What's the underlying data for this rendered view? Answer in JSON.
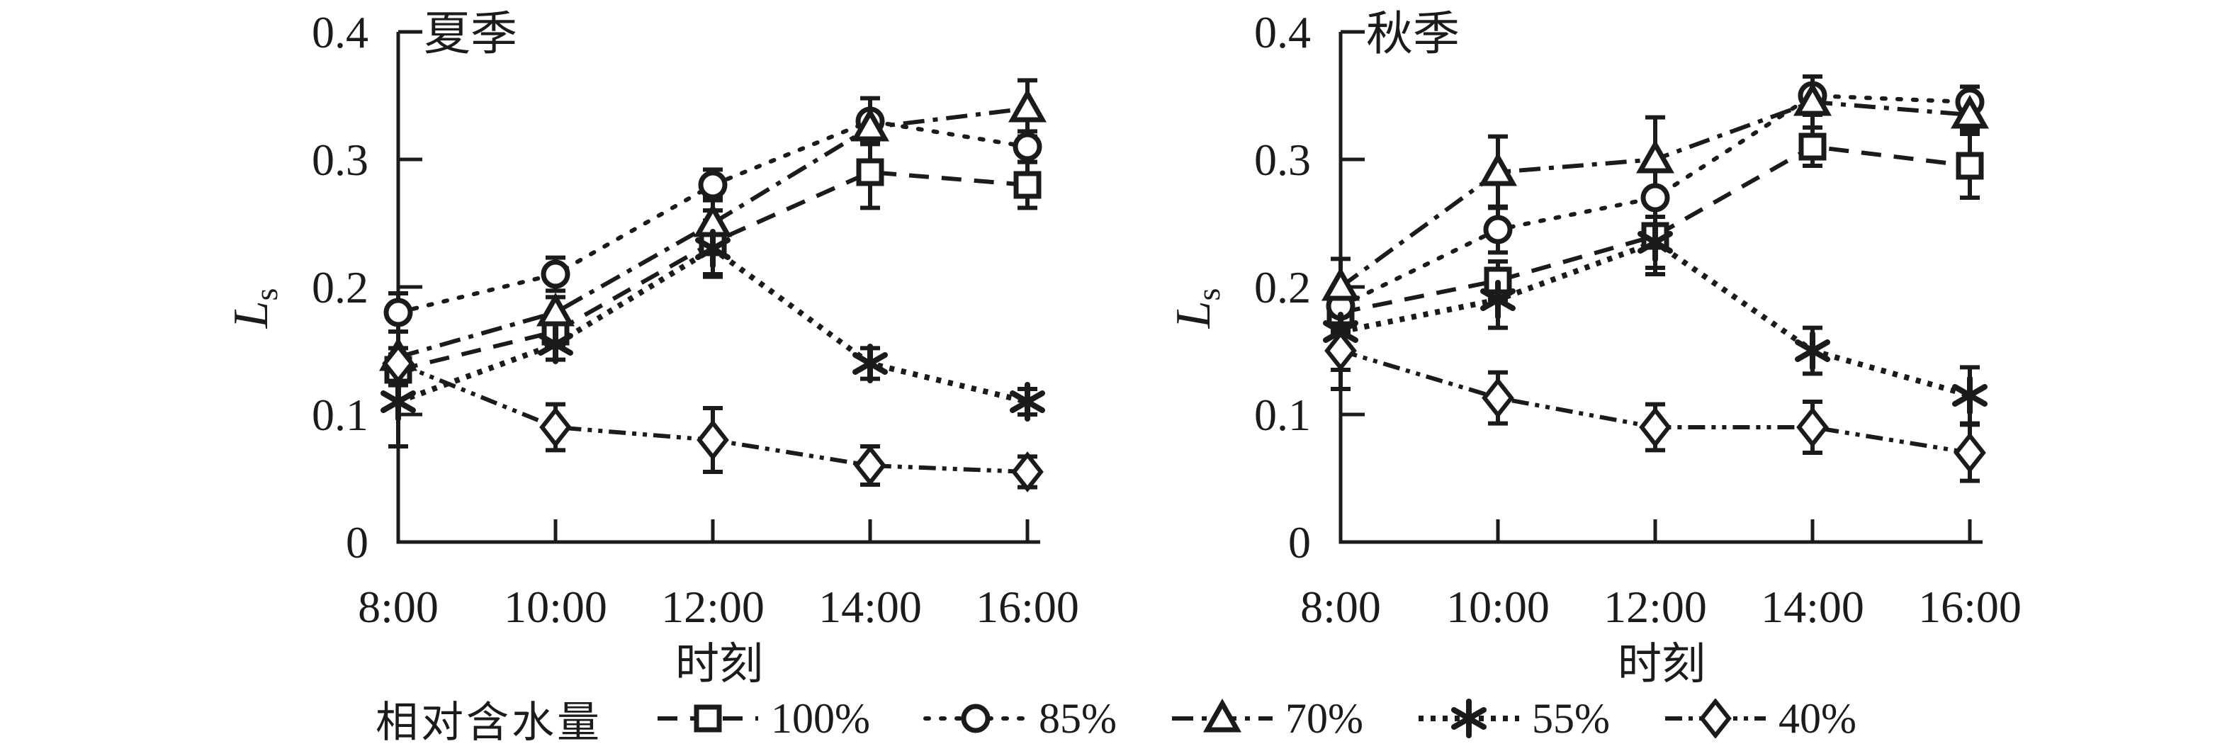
{
  "figure": {
    "ylabel_main": "L",
    "ylabel_sub": "s",
    "xlabel": "时刻",
    "x_tick_labels": [
      "8:00",
      "10:00",
      "12:00",
      "14:00",
      "16:00"
    ],
    "y_tick_labels": [
      "0",
      "0.1",
      "0.2",
      "0.3",
      "0.4"
    ]
  },
  "legend": {
    "title": "相对含水量",
    "items": [
      "100%",
      "85%",
      "70%",
      "55%",
      "40%"
    ]
  },
  "colors": {
    "ink": "#1b1b1b",
    "background": "#ffffff"
  },
  "chart_data": [
    {
      "type": "line",
      "title": "夏季",
      "categories": [
        "8:00",
        "10:00",
        "12:00",
        "14:00",
        "16:00"
      ],
      "xlabel": "时刻",
      "ylabel": "Ls",
      "ylim": [
        0,
        0.4
      ],
      "yticks": [
        0,
        0.1,
        0.2,
        0.3,
        0.4
      ],
      "grid": false,
      "series": [
        {
          "name": "100%",
          "marker": "square",
          "linestyle": "dashed",
          "values": [
            0.135,
            0.165,
            0.235,
            0.29,
            0.28
          ],
          "errors": [
            0.012,
            0.01,
            0.025,
            0.028,
            0.018
          ]
        },
        {
          "name": "85%",
          "marker": "circle",
          "linestyle": "dotted",
          "values": [
            0.18,
            0.21,
            0.28,
            0.33,
            0.31
          ],
          "errors": [
            0.015,
            0.013,
            0.012,
            0.018,
            0.012
          ]
        },
        {
          "name": "70%",
          "marker": "triangle",
          "linestyle": "dashdot",
          "values": [
            0.145,
            0.18,
            0.25,
            0.325,
            0.34
          ],
          "errors": [
            0.02,
            0.012,
            0.02,
            0.01,
            0.022
          ]
        },
        {
          "name": "55%",
          "marker": "asterisk",
          "linestyle": "densely-dotted",
          "values": [
            0.11,
            0.155,
            0.23,
            0.14,
            0.11
          ],
          "errors": [
            0.035,
            0.012,
            0.022,
            0.012,
            0.01
          ]
        },
        {
          "name": "40%",
          "marker": "diamond",
          "linestyle": "dashdotdot",
          "values": [
            0.14,
            0.09,
            0.08,
            0.06,
            0.055
          ],
          "errors": [
            0.012,
            0.018,
            0.025,
            0.015,
            0.012
          ]
        }
      ]
    },
    {
      "type": "line",
      "title": "秋季",
      "categories": [
        "8:00",
        "10:00",
        "12:00",
        "14:00",
        "16:00"
      ],
      "xlabel": "时刻",
      "ylabel": "Ls",
      "ylim": [
        0,
        0.4
      ],
      "yticks": [
        0,
        0.1,
        0.2,
        0.3,
        0.4
      ],
      "grid": false,
      "series": [
        {
          "name": "100%",
          "marker": "square",
          "linestyle": "dashed",
          "values": [
            0.18,
            0.205,
            0.24,
            0.31,
            0.295
          ],
          "errors": [
            0.015,
            0.015,
            0.03,
            0.015,
            0.025
          ]
        },
        {
          "name": "85%",
          "marker": "circle",
          "linestyle": "dotted",
          "values": [
            0.185,
            0.245,
            0.27,
            0.35,
            0.345
          ],
          "errors": [
            0.015,
            0.018,
            0.03,
            0.015,
            0.012
          ]
        },
        {
          "name": "70%",
          "marker": "triangle",
          "linestyle": "dashdot",
          "values": [
            0.2,
            0.29,
            0.3,
            0.345,
            0.335
          ],
          "errors": [
            0.022,
            0.028,
            0.033,
            0.02,
            0.012
          ]
        },
        {
          "name": "55%",
          "marker": "asterisk",
          "linestyle": "densely-dotted",
          "values": [
            0.165,
            0.19,
            0.235,
            0.15,
            0.115
          ],
          "errors": [
            0.03,
            0.022,
            0.02,
            0.018,
            0.022
          ]
        },
        {
          "name": "40%",
          "marker": "diamond",
          "linestyle": "dashdotdot",
          "values": [
            0.15,
            0.113,
            0.09,
            0.09,
            0.07
          ],
          "errors": [
            0.03,
            0.02,
            0.018,
            0.02,
            0.022
          ]
        }
      ]
    }
  ]
}
